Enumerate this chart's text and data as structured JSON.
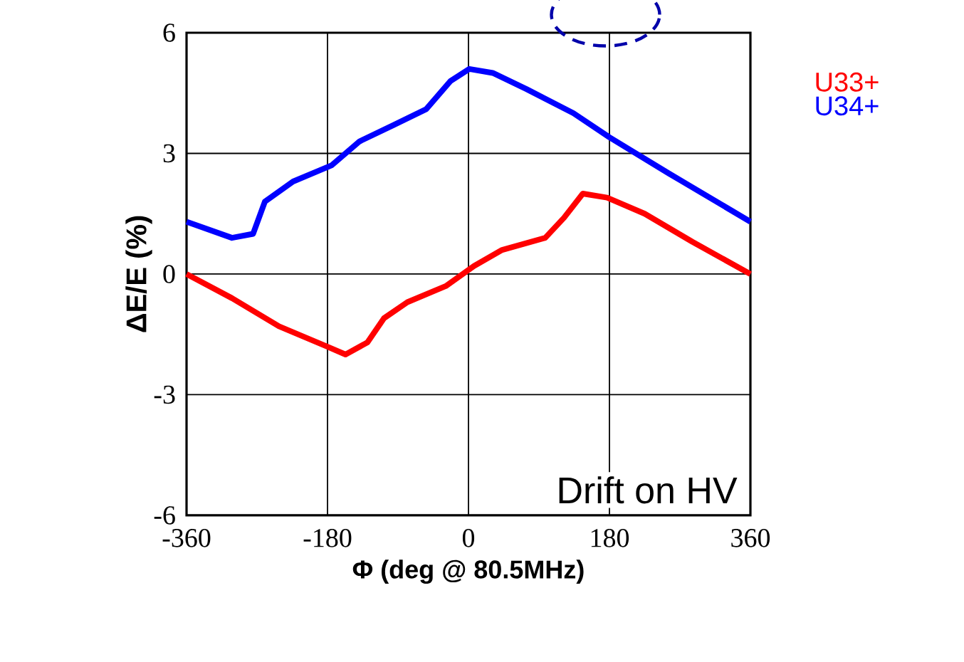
{
  "chart_data": {
    "type": "line",
    "xlabel": "Φ (deg @ 80.5MHz)",
    "ylabel": "ΔE/E (%)",
    "annotations": [
      "Drift on HV"
    ],
    "xlim": [
      -360,
      360
    ],
    "ylim": [
      -6,
      6
    ],
    "xticks": [
      -360,
      -180,
      0,
      180,
      360
    ],
    "yticks": [
      -6,
      -3,
      0,
      3,
      6
    ],
    "grid": true,
    "legend": "right",
    "marker": "none",
    "line_style": "solid",
    "series": [
      {
        "name": "U33+",
        "color": "#ff0000",
        "x": [
          -360,
          -302,
          -242,
          -181,
          -157,
          -129,
          -108,
          -78,
          -29,
          7,
          43,
          98,
          122,
          146,
          177,
          225,
          286,
          360
        ],
        "values": [
          0,
          -0.6,
          -1.3,
          -1.8,
          -2.0,
          -1.7,
          -1.1,
          -0.7,
          -0.3,
          0.2,
          0.6,
          0.9,
          1.4,
          2.0,
          1.9,
          1.5,
          0.8,
          0
        ]
      },
      {
        "name": "U34+",
        "color": "#0000ff",
        "x": [
          -360,
          -302,
          -275,
          -260,
          -224,
          -175,
          -139,
          -96,
          -54,
          -23,
          1,
          31,
          74,
          134,
          180,
          256,
          360
        ],
        "values": [
          1.3,
          0.9,
          1.0,
          1.8,
          2.3,
          2.7,
          3.3,
          3.7,
          4.1,
          4.8,
          5.1,
          5.0,
          4.6,
          4.0,
          3.4,
          2.5,
          1.3
        ]
      }
    ]
  }
}
